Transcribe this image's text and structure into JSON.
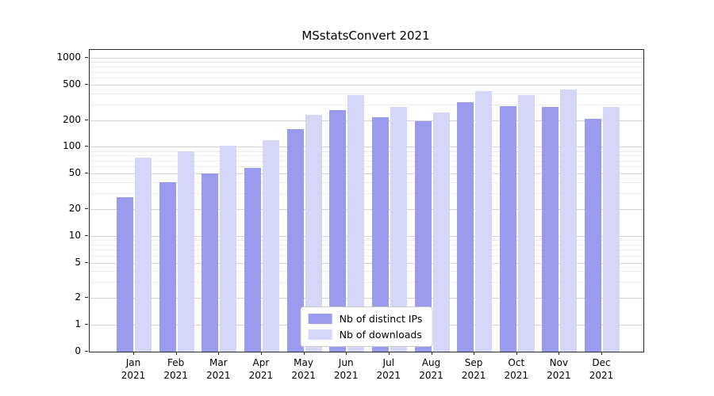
{
  "chart_data": {
    "type": "bar",
    "title": "MSstatsConvert 2021",
    "categories": [
      "Jan 2021",
      "Feb 2021",
      "Mar 2021",
      "Apr 2021",
      "May 2021",
      "Jun 2021",
      "Jul 2021",
      "Aug 2021",
      "Sep 2021",
      "Oct 2021",
      "Nov 2021",
      "Dec 2021"
    ],
    "series": [
      {
        "name": "Nb of distinct IPs",
        "color": "#9a9aee",
        "values": [
          27,
          40,
          50,
          58,
          160,
          260,
          215,
          196,
          315,
          287,
          282,
          208
        ]
      },
      {
        "name": "Nb of downloads",
        "color": "#d6d6f8",
        "values": [
          75,
          90,
          103,
          118,
          230,
          385,
          280,
          243,
          420,
          385,
          445,
          282
        ]
      }
    ],
    "yscale": "symlog",
    "yticks": [
      0,
      1,
      2,
      5,
      10,
      20,
      50,
      100,
      200,
      500,
      1000
    ],
    "ylim": [
      0,
      1100
    ],
    "xlabel": "",
    "ylabel": "",
    "grid": true,
    "legend_position": "lower center",
    "colors": {
      "distinct_ips": "#9a9aee",
      "downloads": "#d6d6f8",
      "grid_major": "#d4d4d4",
      "grid_minor": "#ebebeb"
    }
  }
}
